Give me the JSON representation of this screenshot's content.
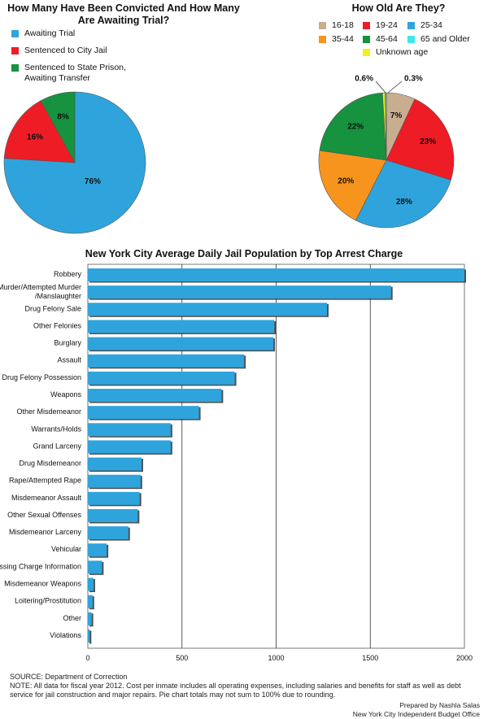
{
  "chart_data": [
    {
      "type": "pie",
      "title": "How Many Have Been Convicted And How Many Are Awaiting Trial?",
      "legend": "top-left",
      "slices": [
        {
          "name": "Awaiting Trial",
          "value": 76,
          "label": "76%",
          "color": "#2fa4dc"
        },
        {
          "name": "Sentenced to City Jail",
          "value": 16,
          "label": "16%",
          "color": "#ee1c25"
        },
        {
          "name": "Sentenced to State Prison, Awaiting Transfer",
          "value": 8,
          "label": "8%",
          "color": "#17923e"
        }
      ]
    },
    {
      "type": "pie",
      "title": "How Old Are They?",
      "legend": "top-right",
      "slices": [
        {
          "name": "16-18",
          "value": 7,
          "label": "7%",
          "color": "#c8ad8f"
        },
        {
          "name": "19-24",
          "value": 23,
          "label": "23%",
          "color": "#ee1c25"
        },
        {
          "name": "25-34",
          "value": 28,
          "label": "28%",
          "color": "#2fa4dc"
        },
        {
          "name": "35-44",
          "value": 20,
          "label": "20%",
          "color": "#f7941d"
        },
        {
          "name": "45-64",
          "value": 22,
          "label": "22%",
          "color": "#17923e"
        },
        {
          "name": "65 and Older",
          "value": 0.3,
          "label": "0.3%",
          "color": "#3fe7ea"
        },
        {
          "name": "Unknown age",
          "value": 0.6,
          "label": "0.6%",
          "color": "#f2f21a"
        }
      ]
    },
    {
      "type": "bar",
      "orientation": "horizontal",
      "title": "New York City Average Daily Jail Population by Top Arrest Charge",
      "xlim": [
        0,
        2000
      ],
      "xticks": [
        0,
        500,
        1000,
        1500,
        2000
      ],
      "grid": true,
      "color": "#2fa4dc",
      "categories": [
        [
          "Robbery"
        ],
        [
          "Murder/Attempted Murder",
          "/Manslaughter"
        ],
        [
          "Drug Felony Sale"
        ],
        [
          "Other Felonies"
        ],
        [
          "Burglary"
        ],
        [
          "Assault"
        ],
        [
          "Drug Felony Possession"
        ],
        [
          "Weapons"
        ],
        [
          "Other Misdemeanor"
        ],
        [
          "Warrants/Holds"
        ],
        [
          "Grand Larceny"
        ],
        [
          "Drug Misdemeanor"
        ],
        [
          "Rape/Attempted Rape"
        ],
        [
          "Misdemeanor Assault"
        ],
        [
          "Other Sexual Offenses"
        ],
        [
          "Misdemeanor Larceny"
        ],
        [
          "Vehicular"
        ],
        [
          "Missing Charge Information"
        ],
        [
          "Misdemeanor Weapons"
        ],
        [
          "Loitering/Prostitution"
        ],
        [
          "Other"
        ],
        [
          "Violations"
        ]
      ],
      "values": [
        2000,
        1610,
        1270,
        990,
        985,
        830,
        780,
        710,
        590,
        440,
        440,
        285,
        280,
        275,
        265,
        215,
        100,
        75,
        30,
        25,
        20,
        10
      ]
    }
  ],
  "footer": {
    "source": "SOURCE: Department of Correction",
    "note": "NOTE: All data for fiscal year 2012. Cost per inmate includes all operating expenses, including salaries and benefits for staff as well as debt service for jail construction and major repairs. Pie chart totals may not sum to 100% due to rounding.",
    "credit_line1": "Prepared by Nashla Salas",
    "credit_line2": "New York City Independent Budget Office"
  }
}
